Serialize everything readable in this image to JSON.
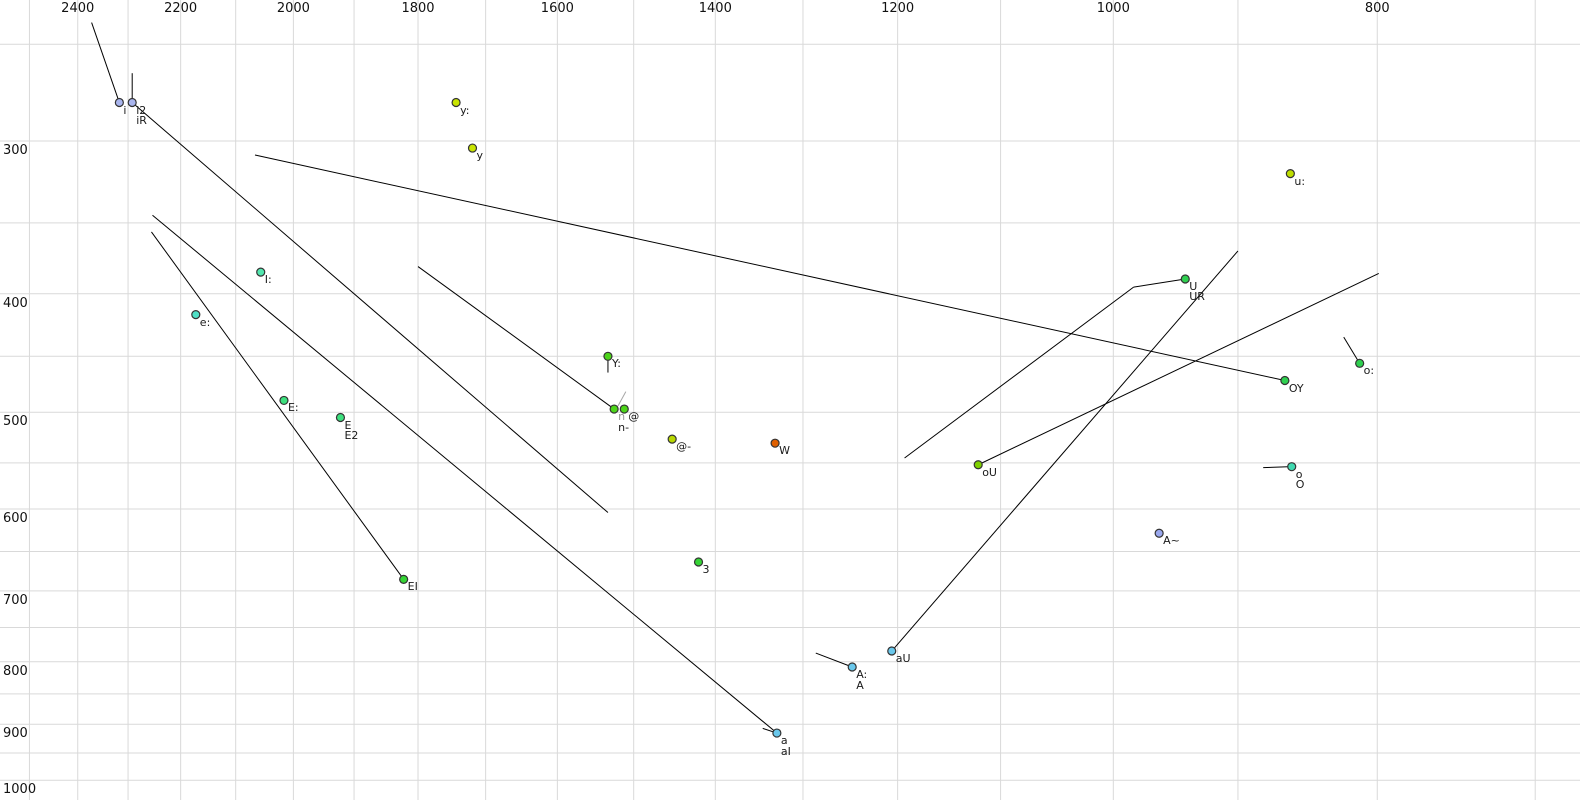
{
  "chart_data": {
    "type": "scatter",
    "title": "",
    "xlabel": "",
    "ylabel": "",
    "description": "Vowel formant scatter plot: F2 (Hz, log scale, reversed) horizontal with labels on top, F1 (Hz, log scale, increasing downward) vertical with labels on left, diphthong trajectory lines",
    "x_axis": {
      "ticks": [
        2400,
        2200,
        2000,
        1800,
        1600,
        1400,
        1200,
        1000,
        800
      ],
      "gridlines": [
        2500,
        2400,
        2300,
        2200,
        2100,
        2000,
        1900,
        1800,
        1700,
        1600,
        1500,
        1400,
        1300,
        1200,
        1100,
        1000,
        900,
        800,
        700
      ],
      "range": [
        2563,
        674
      ],
      "scale": "log",
      "direction": "reversed"
    },
    "y_axis": {
      "ticks": [
        300,
        400,
        500,
        600,
        700,
        800,
        900,
        1000
      ],
      "gridlines": [
        250,
        300,
        350,
        400,
        450,
        500,
        550,
        600,
        650,
        700,
        750,
        800,
        850,
        900,
        950,
        1000
      ],
      "range": [
        230,
        1038
      ],
      "scale": "log",
      "direction": "down"
    },
    "grid": true,
    "legend": false,
    "points": [
      {
        "labels": [
          {
            "text": "i"
          }
        ],
        "f2": 2317,
        "f1": 279,
        "color": "#a9b5ee"
      },
      {
        "labels": [
          {
            "text": "i2"
          },
          {
            "text": "iR"
          }
        ],
        "f2": 2292,
        "f1": 279,
        "color": "#a9b5ee"
      },
      {
        "labels": [
          {
            "text": "y:"
          }
        ],
        "f2": 1743,
        "f1": 279,
        "color": "#c8e400"
      },
      {
        "labels": [
          {
            "text": "y"
          }
        ],
        "f2": 1719,
        "f1": 304,
        "color": "#c8e400"
      },
      {
        "labels": [
          {
            "text": "u:"
          }
        ],
        "f2": 861,
        "f1": 319,
        "color": "#bede00"
      },
      {
        "labels": [
          {
            "text": "I:"
          }
        ],
        "f2": 2056,
        "f1": 384,
        "color": "#52e6ae"
      },
      {
        "labels": [
          {
            "text": "e:"
          }
        ],
        "f2": 2172,
        "f1": 416,
        "color": "#4fe0c6"
      },
      {
        "labels": [
          {
            "text": "E:"
          }
        ],
        "f2": 2016,
        "f1": 489,
        "color": "#3de07e"
      },
      {
        "labels": [
          {
            "text": "E"
          },
          {
            "text": "E2"
          }
        ],
        "f2": 1922,
        "f1": 505,
        "color": "#3de07e"
      },
      {
        "labels": [
          {
            "text": "Y:"
          }
        ],
        "f2": 1533,
        "f1": 450,
        "color": "#4cd41a"
      },
      {
        "labels": [
          {
            "text": "n",
            "color": "#999999"
          },
          {
            "text": "n-"
          }
        ],
        "f2": 1525,
        "f1": 497,
        "color": "#4cd41a"
      },
      {
        "labels": [
          {
            "text": "@"
          }
        ],
        "f2": 1512,
        "f1": 497,
        "color": "#4cd41a"
      },
      {
        "labels": [
          {
            "text": "@-"
          }
        ],
        "f2": 1452,
        "f1": 526,
        "color": "#b8d800"
      },
      {
        "labels": [
          {
            "text": "W"
          }
        ],
        "f2": 1331,
        "f1": 530,
        "color": "#e06000"
      },
      {
        "labels": [
          {
            "text": "oU"
          }
        ],
        "f2": 1121,
        "f1": 552,
        "color": "#7ed000"
      },
      {
        "labels": [
          {
            "text": "o"
          },
          {
            "text": "O"
          }
        ],
        "f2": 860,
        "f1": 554,
        "color": "#3fd9b0"
      },
      {
        "labels": [
          {
            "text": "o:"
          }
        ],
        "f2": 812,
        "f1": 456,
        "color": "#2fd050"
      },
      {
        "labels": [
          {
            "text": "OY"
          }
        ],
        "f2": 865,
        "f1": 471,
        "color": "#2fd050"
      },
      {
        "labels": [
          {
            "text": "U"
          },
          {
            "text": "UR"
          }
        ],
        "f2": 941,
        "f1": 389,
        "color": "#2fd050"
      },
      {
        "labels": [
          {
            "text": "A~"
          }
        ],
        "f2": 962,
        "f1": 628,
        "color": "#9aa8ee"
      },
      {
        "labels": [
          {
            "text": "3"
          }
        ],
        "f2": 1420,
        "f1": 663,
        "color": "#35d435"
      },
      {
        "labels": [
          {
            "text": "EI"
          }
        ],
        "f2": 1822,
        "f1": 685,
        "color": "#35d435"
      },
      {
        "labels": [
          {
            "text": "aU"
          }
        ],
        "f2": 1206,
        "f1": 784,
        "color": "#6ac8ec"
      },
      {
        "labels": [
          {
            "text": "A:"
          },
          {
            "text": "A"
          }
        ],
        "f2": 1247,
        "f1": 808,
        "color": "#6ac8ec"
      },
      {
        "labels": [
          {
            "text": "a"
          },
          {
            "text": "aI"
          }
        ],
        "f2": 1329,
        "f1": 915,
        "color": "#6ac8ec"
      }
    ],
    "trajectories": [
      {
        "f2": [
          2372,
          2317
        ],
        "f1": [
          240,
          279
        ]
      },
      {
        "f2": [
          2292,
          2292
        ],
        "f1": [
          264,
          279
        ]
      },
      {
        "f2": [
          2292,
          1533
        ],
        "f1": [
          279,
          604
        ]
      },
      {
        "f2": [
          1329,
          2253
        ],
        "f1": [
          915,
          345
        ]
      },
      {
        "f2": [
          1822,
          2255
        ],
        "f1": [
          685,
          356
        ]
      },
      {
        "f2": [
          865,
          2066
        ],
        "f1": [
          471,
          308
        ]
      },
      {
        "f2": [
          1800,
          1525
        ],
        "f1": [
          380,
          497
        ]
      },
      {
        "f2": [
          1533,
          1533
        ],
        "f1": [
          450,
          464
        ]
      },
      {
        "f2": [
          1510,
          1520
        ],
        "f1": [
          481,
          494
        ],
        "color": "#a8a8a8"
      },
      {
        "f2": [
          1206,
          900
        ],
        "f1": [
          784,
          369
        ]
      },
      {
        "f2": [
          1121,
          799
        ],
        "f1": [
          552,
          385
        ]
      },
      {
        "f2": [
          1193,
          983
        ],
        "f1": [
          545,
          395
        ]
      },
      {
        "f2": [
          983,
          941
        ],
        "f1": [
          395,
          389
        ]
      },
      {
        "f2": [
          881,
          860
        ],
        "f1": [
          555,
          554
        ]
      },
      {
        "f2": [
          823,
          812
        ],
        "f1": [
          434,
          456
        ]
      },
      {
        "f2": [
          1286,
          1247
        ],
        "f1": [
          787,
          808
        ]
      },
      {
        "f2": [
          1345,
          1329
        ],
        "f1": [
          907,
          915
        ]
      }
    ],
    "colors": {
      "background": "#ffffff",
      "grid": "#d9d9d9",
      "line": "#000000",
      "point_stroke": "#333333",
      "label": "#1a1a1a",
      "tick": "#111111",
      "muted_label": "#999999"
    }
  }
}
